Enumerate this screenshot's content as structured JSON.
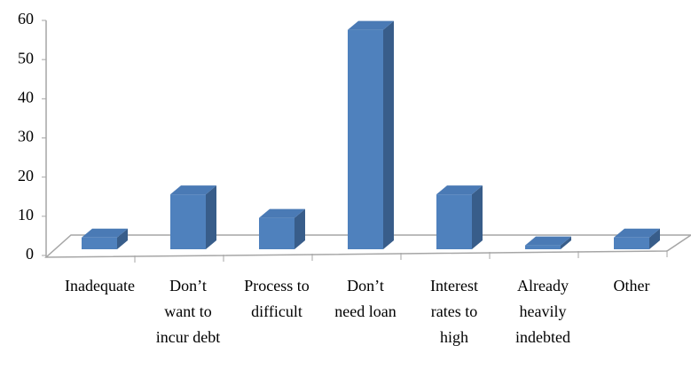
{
  "chart_data": {
    "type": "bar3d",
    "categories": [
      "Inadequate",
      "Don’t want to incur debt",
      "Process to difficult",
      "Don’t need loan",
      "Interest rates to high",
      "Already heavily indebted",
      "Other"
    ],
    "values": [
      3,
      14,
      8,
      56,
      14,
      1,
      3
    ],
    "color": "#4f81bd",
    "ylim": [
      0,
      60
    ],
    "yticks": [
      0,
      10,
      20,
      30,
      40,
      50,
      60
    ]
  }
}
